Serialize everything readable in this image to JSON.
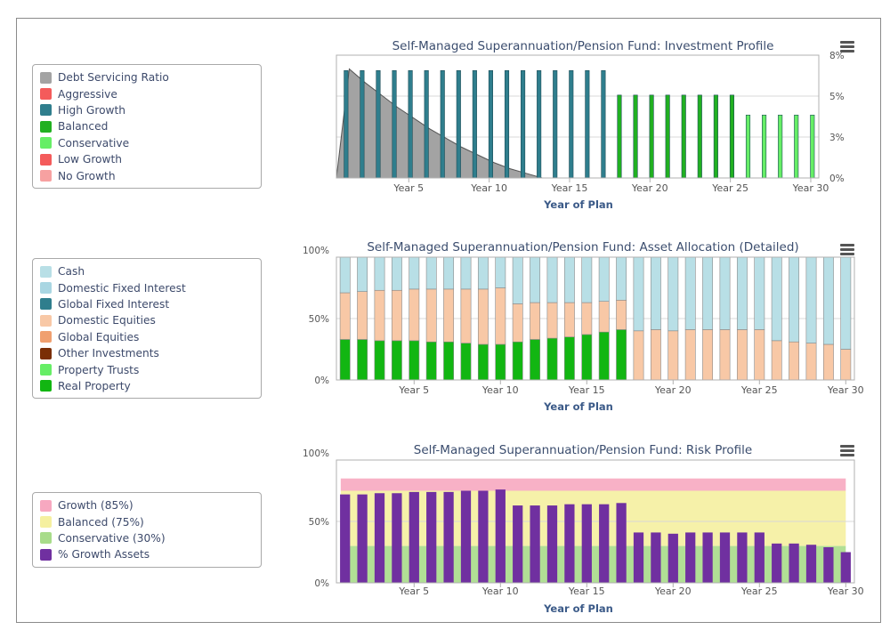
{
  "charts": [
    {
      "title": "Self-Managed Superannuation/Pension Fund: Investment Profile",
      "xlabel": "Year of Plan",
      "legend": [
        {
          "label": "Debt Servicing Ratio",
          "color": "#a3a3a3"
        },
        {
          "label": "Aggressive",
          "color": "#f45b5b"
        },
        {
          "label": "High Growth",
          "color": "#2f7e8d"
        },
        {
          "label": "Balanced",
          "color": "#21b021"
        },
        {
          "label": "Conservative",
          "color": "#66ee66"
        },
        {
          "label": "Low Growth",
          "color": "#f45b5b"
        },
        {
          "label": "No Growth",
          "color": "#f7a1a1"
        }
      ],
      "x_tick_labels": [
        "Year 5",
        "Year 10",
        "Year 15",
        "Year 20",
        "Year 25",
        "Year 30"
      ],
      "y_tick_labels": [
        "8%",
        "5%",
        "3%",
        "0%"
      ],
      "menu_icon": "hamburger-menu-icon"
    },
    {
      "title": "Self-Managed Superannuation/Pension Fund: Asset Allocation (Detailed)",
      "xlabel": "Year of Plan",
      "legend": [
        {
          "label": "Cash",
          "color": "#b8dfe6"
        },
        {
          "label": "Domestic Fixed Interest",
          "color": "#a9d6e2"
        },
        {
          "label": "Global Fixed Interest",
          "color": "#2f7e8d"
        },
        {
          "label": "Domestic Equities",
          "color": "#f8c8a6"
        },
        {
          "label": "Global Equities",
          "color": "#f0a070"
        },
        {
          "label": "Other Investments",
          "color": "#7a2e06"
        },
        {
          "label": "Property Trusts",
          "color": "#66ee66"
        },
        {
          "label": "Real Property",
          "color": "#12b612"
        }
      ],
      "x_tick_labels": [
        "Year 5",
        "Year 10",
        "Year 15",
        "Year 20",
        "Year 25",
        "Year 30"
      ],
      "y_tick_labels": [
        "100%",
        "50%",
        "0%"
      ],
      "menu_icon": "hamburger-menu-icon"
    },
    {
      "title": "Self-Managed Superannuation/Pension Fund: Risk Profile",
      "xlabel": "Year of Plan",
      "legend": [
        {
          "label": "Growth (85%)",
          "color": "#f7a8c0"
        },
        {
          "label": "Balanced (75%)",
          "color": "#f5f0a0"
        },
        {
          "label": "Conservative (30%)",
          "color": "#a8dc8a"
        },
        {
          "label": "% Growth Assets",
          "color": "#7030a0"
        }
      ],
      "x_tick_labels": [
        "Year 5",
        "Year 10",
        "Year 15",
        "Year 20",
        "Year 25",
        "Year 30"
      ],
      "y_tick_labels": [
        "100%",
        "50%",
        "0%"
      ],
      "menu_icon": "hamburger-menu-icon"
    }
  ],
  "chart_data": [
    {
      "type": "bar",
      "title": "Self-Managed Superannuation/Pension Fund: Investment Profile",
      "xlabel": "Year of Plan",
      "ylim": [
        0,
        8
      ],
      "y_unit": "%",
      "x": [
        1,
        2,
        3,
        4,
        5,
        6,
        7,
        8,
        9,
        10,
        11,
        12,
        13,
        14,
        15,
        16,
        17,
        18,
        19,
        20,
        21,
        22,
        23,
        24,
        25,
        26,
        27,
        28,
        29,
        30
      ],
      "series": [
        {
          "name": "Debt Servicing Ratio",
          "kind": "area",
          "color": "#a3a3a3",
          "values": [
            7.1,
            6.2,
            5.4,
            4.6,
            3.9,
            3.2,
            2.6,
            2.0,
            1.5,
            1.0,
            0.6,
            0.3,
            0,
            0,
            0,
            0,
            0,
            0,
            0,
            0,
            0,
            0,
            0,
            0,
            0,
            0,
            0,
            0,
            0,
            0
          ]
        },
        {
          "name": "High Growth",
          "color": "#2f7e8d",
          "values": [
            7,
            7,
            7,
            7,
            7,
            7,
            7,
            7,
            7,
            7,
            7,
            7,
            7,
            7,
            7,
            7,
            7,
            null,
            null,
            null,
            null,
            null,
            null,
            null,
            null,
            null,
            null,
            null,
            null,
            null
          ]
        },
        {
          "name": "Balanced",
          "color": "#21b021",
          "values": [
            null,
            null,
            null,
            null,
            null,
            null,
            null,
            null,
            null,
            null,
            null,
            null,
            null,
            null,
            null,
            null,
            null,
            5.4,
            5.4,
            5.4,
            5.4,
            5.4,
            5.4,
            5.4,
            5.4,
            null,
            null,
            null,
            null,
            null
          ]
        },
        {
          "name": "Conservative",
          "color": "#66ee66",
          "values": [
            null,
            null,
            null,
            null,
            null,
            null,
            null,
            null,
            null,
            null,
            null,
            null,
            null,
            null,
            null,
            null,
            null,
            null,
            null,
            null,
            null,
            null,
            null,
            null,
            null,
            4.1,
            4.1,
            4.1,
            4.1,
            4.1
          ]
        }
      ]
    },
    {
      "type": "bar",
      "stacked": true,
      "title": "Self-Managed Superannuation/Pension Fund: Asset Allocation (Detailed)",
      "xlabel": "Year of Plan",
      "ylim": [
        0,
        100
      ],
      "y_unit": "%",
      "x": [
        1,
        2,
        3,
        4,
        5,
        6,
        7,
        8,
        9,
        10,
        11,
        12,
        13,
        14,
        15,
        16,
        17,
        18,
        19,
        20,
        21,
        22,
        23,
        24,
        25,
        26,
        27,
        28,
        29,
        30
      ],
      "series": [
        {
          "name": "Real Property",
          "color": "#12b612",
          "values": [
            33,
            33,
            32,
            32,
            32,
            31,
            31,
            30,
            29,
            29,
            31,
            33,
            34,
            35,
            37,
            39,
            41,
            0,
            0,
            0,
            0,
            0,
            0,
            0,
            0,
            0,
            0,
            0,
            0,
            0
          ]
        },
        {
          "name": "Domestic Equities",
          "color": "#f8c8a6",
          "values": [
            38,
            39,
            41,
            41,
            42,
            43,
            43,
            44,
            45,
            46,
            31,
            30,
            29,
            28,
            26,
            25,
            24,
            40,
            41,
            40,
            41,
            41,
            41,
            41,
            41,
            32,
            31,
            30,
            29,
            25
          ]
        },
        {
          "name": "Cash",
          "color": "#b8dfe6",
          "values": [
            29,
            28,
            27,
            27,
            26,
            26,
            26,
            26,
            26,
            25,
            38,
            37,
            37,
            37,
            37,
            36,
            35,
            60,
            59,
            60,
            59,
            59,
            59,
            59,
            59,
            68,
            69,
            70,
            71,
            75
          ]
        }
      ]
    },
    {
      "type": "bar",
      "title": "Self-Managed Superannuation/Pension Fund: Risk Profile",
      "xlabel": "Year of Plan",
      "ylim": [
        0,
        100
      ],
      "y_unit": "%",
      "x": [
        1,
        2,
        3,
        4,
        5,
        6,
        7,
        8,
        9,
        10,
        11,
        12,
        13,
        14,
        15,
        16,
        17,
        18,
        19,
        20,
        21,
        22,
        23,
        24,
        25,
        26,
        27,
        28,
        29,
        30
      ],
      "bands": [
        {
          "name": "Growth (85%)",
          "color": "#f7a8c0",
          "values": [
            75,
            85
          ]
        },
        {
          "name": "Balanced (75%)",
          "color": "#f5f0a0",
          "values": [
            30,
            75
          ]
        },
        {
          "name": "Conservative (30%)",
          "color": "#a8dc8a",
          "values": [
            0,
            30
          ]
        }
      ],
      "series": [
        {
          "name": "% Growth Assets",
          "color": "#7030a0",
          "values": [
            72,
            72,
            73,
            73,
            74,
            74,
            74,
            75,
            75,
            76,
            63,
            63,
            63,
            64,
            64,
            64,
            65,
            41,
            41,
            40,
            41,
            41,
            41,
            41,
            41,
            32,
            32,
            31,
            29,
            25
          ]
        }
      ]
    }
  ]
}
